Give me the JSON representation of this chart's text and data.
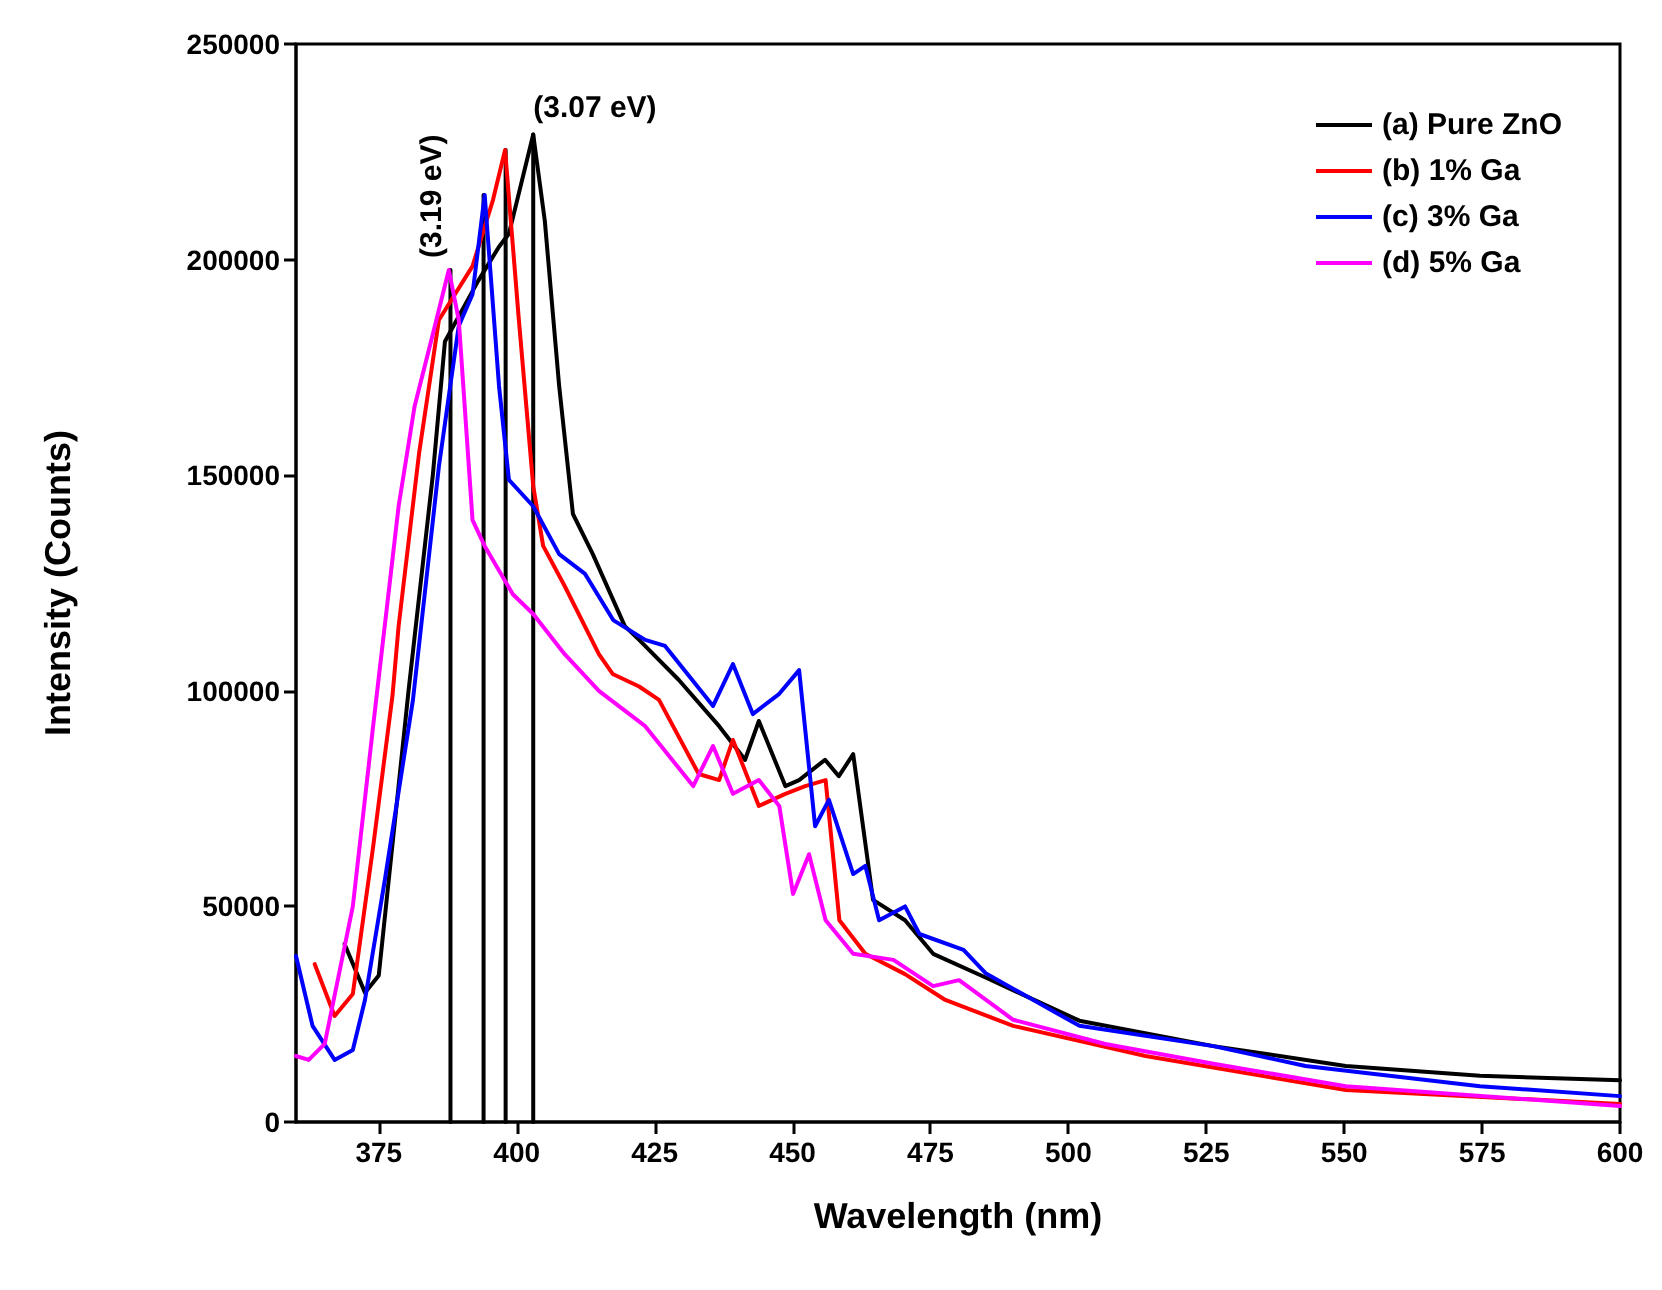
{
  "chart_data": {
    "type": "line",
    "xlabel": "Wavelength (nm)",
    "ylabel": "Intensity (Counts)",
    "xlim": [
      360,
      600
    ],
    "xticks": [
      375,
      400,
      425,
      450,
      475,
      500,
      525,
      550,
      575,
      600
    ],
    "ylim": [
      0,
      250000
    ],
    "yticks": [
      0,
      50000,
      100000,
      150000,
      200000,
      250000
    ],
    "grid": false,
    "legend": "top right",
    "marker": "none",
    "line_style": "solid",
    "annotations": [
      {
        "text": "(3.19 eV)",
        "x": 388,
        "y": 197600
      },
      {
        "text": "(3.07 eV)",
        "x": 403,
        "y": 229000
      }
    ],
    "series": [
      {
        "name": "(a) Pure ZnO",
        "color": "#000000",
        "x": [
          368.8,
          372.5,
          375,
          380.4,
          384.8,
          387,
          393,
          396.8,
          398.6,
          403,
          405.1,
          407.7,
          410.2,
          413.8,
          419.6,
          422.2,
          429.4,
          436.7,
          441.4,
          443.9,
          448.7,
          451.2,
          455.9,
          458.4,
          461,
          464.6,
          470.4,
          475.5,
          485,
          502,
          526.3,
          550.3,
          574.6,
          600
        ],
        "values": [
          41300,
          30000,
          34000,
          100000,
          150000,
          181000,
          195000,
          203000,
          206000,
          229000,
          209000,
          170700,
          141000,
          131700,
          115000,
          111800,
          102500,
          91800,
          84000,
          93000,
          77900,
          79300,
          84000,
          80200,
          85300,
          51500,
          46800,
          39000,
          33500,
          23500,
          17600,
          13000,
          10700,
          9700
        ]
      },
      {
        "name": "(b) 1% Ga",
        "color": "#ff0000",
        "x": [
          363.4,
          367,
          370.3,
          374,
          377.5,
          378.6,
          382.3,
          385.9,
          392,
          395.7,
          397.9,
          400.4,
          403,
          404.8,
          408.7,
          414.9,
          417.4,
          422.2,
          425.8,
          433,
          436.7,
          439.2,
          443.9,
          448.7,
          452.3,
          456,
          458.5,
          463.2,
          470.4,
          477.7,
          490,
          514,
          550.3,
          600
        ],
        "values": [
          36600,
          24600,
          29700,
          64000,
          99000,
          115000,
          155000,
          186000,
          198500,
          213800,
          225400,
          186000,
          147500,
          133600,
          124300,
          108500,
          103900,
          101000,
          97900,
          80700,
          79300,
          88600,
          73300,
          76100,
          77900,
          79300,
          46800,
          39000,
          34300,
          28300,
          22300,
          15300,
          7400,
          4200
        ]
      },
      {
        "name": "(c) 3% Ga",
        "color": "#0000ff",
        "x": [
          360,
          363,
          367,
          370.3,
          372.5,
          376.1,
          381.2,
          385.9,
          389.5,
          392,
          394.2,
          396.8,
          398.6,
          403,
          407.7,
          412.4,
          417.5,
          423.3,
          426.9,
          435.6,
          439.2,
          442.8,
          447.6,
          451.2,
          454.1,
          456.6,
          461,
          463.2,
          465.7,
          470.4,
          473,
          481,
          485,
          502,
          526.3,
          543,
          574.6,
          600
        ],
        "values": [
          38500,
          22300,
          14400,
          16700,
          28300,
          56100,
          97900,
          152000,
          184600,
          192000,
          215000,
          170700,
          148900,
          142800,
          131700,
          127100,
          116400,
          111800,
          110400,
          96500,
          106200,
          94600,
          99300,
          104800,
          68600,
          74700,
          57500,
          59400,
          46800,
          50000,
          43600,
          39900,
          34500,
          22300,
          17600,
          13000,
          8300,
          6000
        ]
      },
      {
        "name": "(d) 5% Ga",
        "color": "#ff00ff",
        "x": [
          360,
          362.3,
          365.2,
          370.3,
          374,
          378.6,
          381.5,
          384.8,
          387.7,
          389.5,
          392,
          394.2,
          399.3,
          403,
          408.7,
          414.9,
          423.3,
          432,
          435.6,
          439.2,
          443.9,
          447.6,
          450.1,
          453,
          456,
          461,
          468.3,
          475.5,
          480.2,
          490,
          506.7,
          526.3,
          550.3,
          600
        ],
        "values": [
          15300,
          14400,
          18100,
          50000,
          92000,
          142800,
          166000,
          182700,
          197600,
          186000,
          139600,
          133600,
          122400,
          117800,
          108500,
          100000,
          91800,
          77900,
          87200,
          76100,
          79300,
          73300,
          52900,
          62100,
          46800,
          39000,
          37600,
          31500,
          32900,
          23700,
          18100,
          13500,
          8300,
          3700
        ]
      },
      {
        "color": "#000000",
        "x": [
          388,
          388
        ],
        "values": [
          0,
          197600
        ]
      },
      {
        "color": "#000000",
        "x": [
          394,
          394
        ],
        "values": [
          0,
          215000
        ]
      },
      {
        "color": "#000000",
        "x": [
          398,
          398
        ],
        "values": [
          0,
          225400
        ]
      },
      {
        "color": "#000000",
        "x": [
          403,
          403
        ],
        "values": [
          0,
          229000
        ]
      }
    ]
  }
}
